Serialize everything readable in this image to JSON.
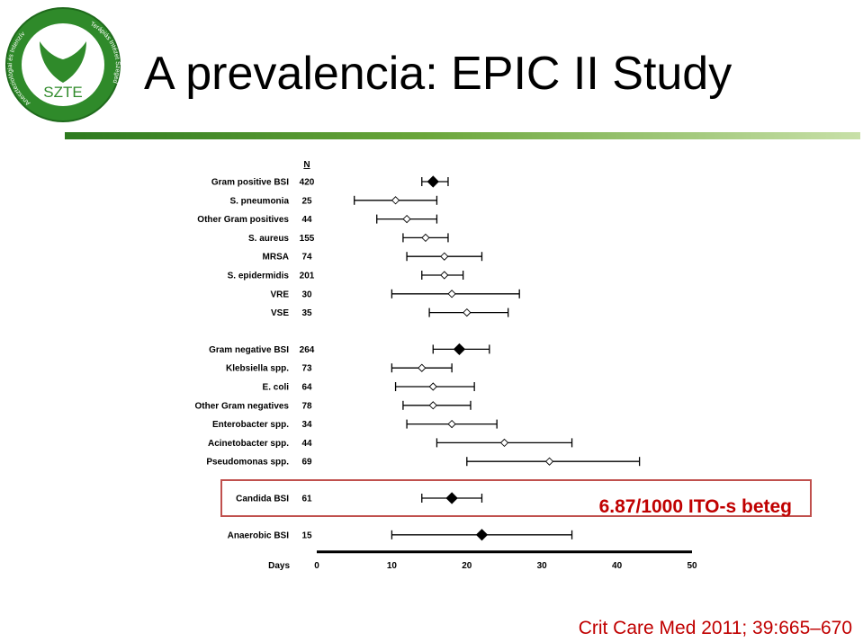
{
  "slide": {
    "title": "A prevalencia: EPIC II Study",
    "citation": "Crit Care Med 2011; 39:665–670",
    "callout": "6.87/1000 ITO-s beteg"
  },
  "logo": {
    "center_text": "SZTE",
    "top_text": "AITI",
    "ring_left": "Aneszteziológiai és Intenzív",
    "ring_right": "Terápiás Intézet Szeged"
  },
  "colors": {
    "title_rule_start": "#2d7a1f",
    "title_rule_end": "#c8e0a8",
    "callout": "#c00000",
    "marker": "#000000"
  },
  "chart_data": {
    "type": "forest",
    "n_header": "N",
    "xlabel": "Days",
    "xlim": [
      0,
      50
    ],
    "xticks": [
      0,
      10,
      20,
      30,
      40,
      50
    ],
    "rows": [
      {
        "label": "Gram positive BSI",
        "n": "420",
        "est": 15.5,
        "lo": 14,
        "hi": 17.5,
        "filled": true,
        "group": 0
      },
      {
        "label": "S. pneumonia",
        "n": "25",
        "est": 10.5,
        "lo": 5,
        "hi": 16,
        "filled": false,
        "group": 0
      },
      {
        "label": "Other Gram positives",
        "n": "44",
        "est": 12,
        "lo": 8,
        "hi": 16,
        "filled": false,
        "group": 0
      },
      {
        "label": "S. aureus",
        "n": "155",
        "est": 14.5,
        "lo": 11.5,
        "hi": 17.5,
        "filled": false,
        "group": 0
      },
      {
        "label": "MRSA",
        "n": "74",
        "est": 17,
        "lo": 12,
        "hi": 22,
        "filled": false,
        "group": 0
      },
      {
        "label": "S. epidermidis",
        "n": "201",
        "est": 17,
        "lo": 14,
        "hi": 19.5,
        "filled": false,
        "group": 0
      },
      {
        "label": "VRE",
        "n": "30",
        "est": 18,
        "lo": 10,
        "hi": 27,
        "filled": false,
        "group": 0
      },
      {
        "label": "VSE",
        "n": "35",
        "est": 20,
        "lo": 15,
        "hi": 25.5,
        "filled": false,
        "group": 0
      },
      {
        "label": "Gram negative BSI",
        "n": "264",
        "est": 19,
        "lo": 15.5,
        "hi": 23,
        "filled": true,
        "group": 1
      },
      {
        "label": "Klebsiella spp.",
        "n": "73",
        "est": 14,
        "lo": 10,
        "hi": 18,
        "filled": false,
        "group": 1
      },
      {
        "label": "E. coli",
        "n": "64",
        "est": 15.5,
        "lo": 10.5,
        "hi": 21,
        "filled": false,
        "group": 1
      },
      {
        "label": "Other Gram negatives",
        "n": "78",
        "est": 15.5,
        "lo": 11.5,
        "hi": 20.5,
        "filled": false,
        "group": 1
      },
      {
        "label": "Enterobacter spp.",
        "n": "34",
        "est": 18,
        "lo": 12,
        "hi": 24,
        "filled": false,
        "group": 1
      },
      {
        "label": "Acinetobacter spp.",
        "n": "44",
        "est": 25,
        "lo": 16,
        "hi": 34,
        "filled": false,
        "group": 1
      },
      {
        "label": "Pseudomonas spp.",
        "n": "69",
        "est": 31,
        "lo": 20,
        "hi": 43,
        "filled": false,
        "group": 1
      },
      {
        "label": "Candida BSI",
        "n": "61",
        "est": 18,
        "lo": 14,
        "hi": 22,
        "filled": true,
        "group": 2,
        "highlight": true
      },
      {
        "label": "Anaerobic BSI",
        "n": "15",
        "est": 22,
        "lo": 10,
        "hi": 34,
        "filled": true,
        "group": 3
      }
    ]
  }
}
